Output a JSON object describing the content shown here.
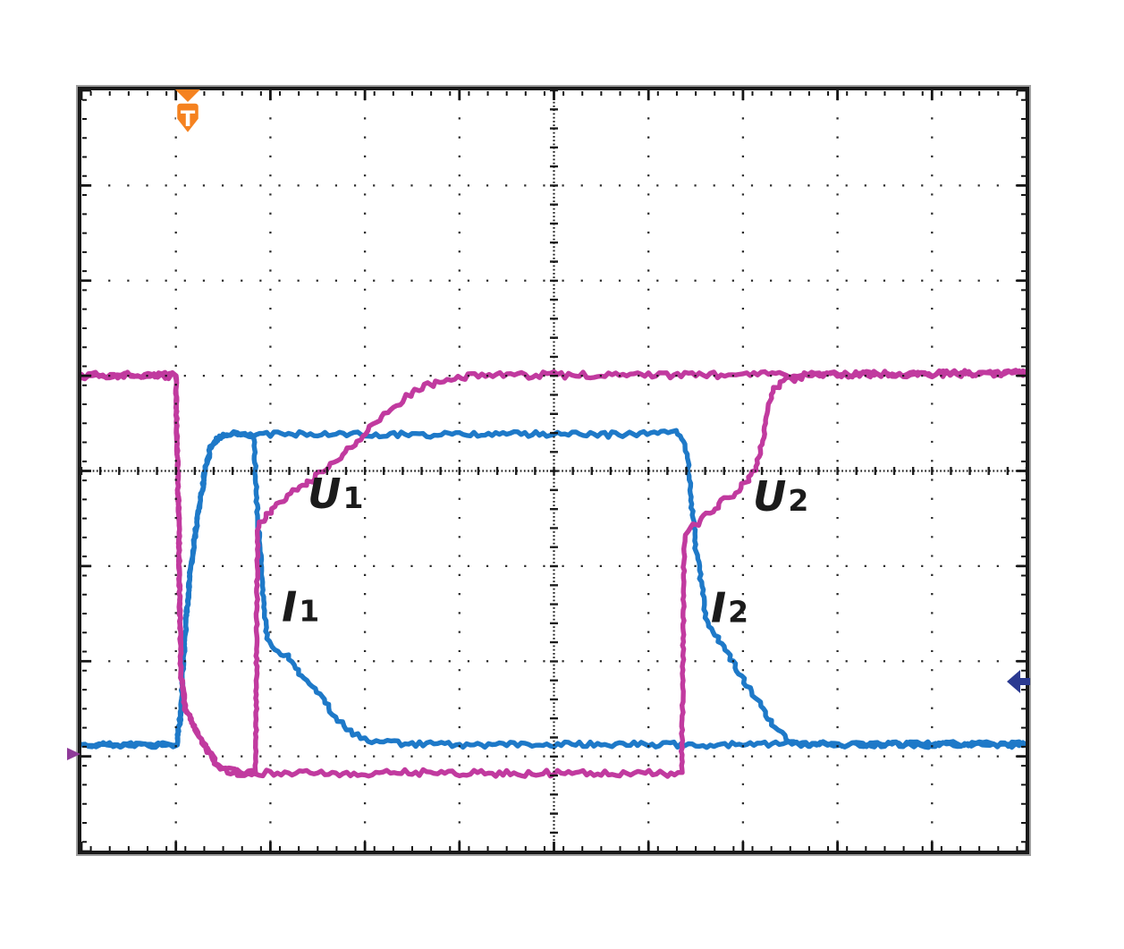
{
  "scope": {
    "trigger_marker": {
      "symbol": "T",
      "x_div": 1.12,
      "color": "#f58220"
    },
    "left_marker": {
      "y_div": 6.97,
      "color": "#8f3a99"
    },
    "right_arrow": {
      "y_div": 6.21,
      "color": "#2b3a91"
    }
  },
  "chart_data": {
    "type": "line",
    "graticule": {
      "x_divisions": 10,
      "y_divisions": 8,
      "style": "dotted grid with dense center crosshair and border ticks"
    },
    "axes": {
      "x_range_div": [
        0,
        10
      ],
      "y_range_div": [
        0,
        8
      ],
      "y_measured_from": "top",
      "tick_labels": "none shown"
    },
    "legend": "none shown",
    "levels_div": {
      "U_high": 3.0,
      "U_low": 7.17,
      "I_zero": 6.88,
      "I_high": 3.62
    },
    "annotations": [
      {
        "text": "U",
        "sub": "1",
        "x_div": 2.69,
        "y_div": 4.24
      },
      {
        "text": "I",
        "sub": "1",
        "x_div": 2.32,
        "y_div": 5.43
      },
      {
        "text": "U",
        "sub": "2",
        "x_div": 7.4,
        "y_div": 4.27
      },
      {
        "text": "I",
        "sub": "2",
        "x_div": 6.86,
        "y_div": 5.44
      }
    ],
    "series": [
      {
        "name": "I1",
        "description": "blue current trace, turn-off at event 1",
        "color": "#1e79c8",
        "noise": 3.1,
        "points": [
          [
            0,
            6.88
          ],
          [
            0.5,
            6.88
          ],
          [
            1.01,
            6.88
          ],
          [
            1.03,
            6.7
          ],
          [
            1.05,
            6.57
          ],
          [
            1.07,
            6.19
          ],
          [
            1.09,
            5.82
          ],
          [
            1.12,
            5.44
          ],
          [
            1.15,
            5.07
          ],
          [
            1.2,
            4.69
          ],
          [
            1.26,
            4.31
          ],
          [
            1.31,
            3.99
          ],
          [
            1.37,
            3.75
          ],
          [
            1.43,
            3.66
          ],
          [
            1.5,
            3.62
          ],
          [
            1.65,
            3.61
          ],
          [
            1.82,
            3.63
          ],
          [
            1.835,
            3.84
          ],
          [
            1.845,
            4.13
          ],
          [
            1.854,
            4.36
          ],
          [
            1.864,
            4.43
          ],
          [
            1.88,
            4.69
          ],
          [
            1.9,
            4.97
          ],
          [
            1.92,
            5.25
          ],
          [
            1.94,
            5.54
          ],
          [
            1.96,
            5.72
          ],
          [
            1.98,
            5.8
          ],
          [
            2.02,
            5.84
          ],
          [
            2.09,
            5.89
          ],
          [
            2.15,
            5.96
          ],
          [
            2.18,
            5.94
          ],
          [
            2.26,
            6.08
          ],
          [
            2.36,
            6.17
          ],
          [
            2.45,
            6.26
          ],
          [
            2.54,
            6.38
          ],
          [
            2.64,
            6.52
          ],
          [
            2.72,
            6.62
          ],
          [
            2.81,
            6.71
          ],
          [
            2.92,
            6.78
          ],
          [
            3.04,
            6.82
          ],
          [
            3.16,
            6.85
          ],
          [
            3.5,
            6.87
          ],
          [
            4.5,
            6.88
          ],
          [
            5.5,
            6.87
          ],
          [
            6.5,
            6.88
          ],
          [
            7.5,
            6.87
          ],
          [
            8.5,
            6.88
          ],
          [
            9.3,
            6.87
          ],
          [
            10,
            6.88
          ]
        ]
      },
      {
        "name": "I2",
        "description": "blue current trace, turn-off at event 2",
        "color": "#1e79c8",
        "noise": 3.1,
        "points": [
          [
            0,
            6.88
          ],
          [
            1.01,
            6.88
          ],
          [
            1.03,
            6.7
          ],
          [
            1.05,
            6.57
          ],
          [
            1.07,
            6.19
          ],
          [
            1.09,
            5.82
          ],
          [
            1.12,
            5.44
          ],
          [
            1.15,
            5.07
          ],
          [
            1.2,
            4.69
          ],
          [
            1.26,
            4.31
          ],
          [
            1.31,
            3.99
          ],
          [
            1.37,
            3.75
          ],
          [
            1.43,
            3.66
          ],
          [
            1.5,
            3.62
          ],
          [
            2.5,
            3.61
          ],
          [
            3.5,
            3.62
          ],
          [
            4.5,
            3.61
          ],
          [
            5.5,
            3.62
          ],
          [
            6.1,
            3.61
          ],
          [
            6.28,
            3.59
          ],
          [
            6.36,
            3.66
          ],
          [
            6.39,
            3.75
          ],
          [
            6.42,
            3.94
          ],
          [
            6.44,
            4.13
          ],
          [
            6.45,
            4.31
          ],
          [
            6.47,
            4.5
          ],
          [
            6.49,
            4.66
          ],
          [
            6.5,
            4.81
          ],
          [
            6.54,
            5.0
          ],
          [
            6.55,
            5.13
          ],
          [
            6.57,
            5.25
          ],
          [
            6.59,
            5.41
          ],
          [
            6.61,
            5.54
          ],
          [
            6.64,
            5.63
          ],
          [
            6.71,
            5.72
          ],
          [
            6.77,
            5.82
          ],
          [
            6.83,
            5.91
          ],
          [
            6.87,
            5.98
          ],
          [
            6.91,
            6.03
          ],
          [
            6.96,
            6.13
          ],
          [
            7.02,
            6.22
          ],
          [
            7.09,
            6.32
          ],
          [
            7.15,
            6.41
          ],
          [
            7.21,
            6.5
          ],
          [
            7.27,
            6.6
          ],
          [
            7.34,
            6.69
          ],
          [
            7.4,
            6.76
          ],
          [
            7.46,
            6.82
          ],
          [
            7.53,
            6.85
          ],
          [
            7.59,
            6.88
          ],
          [
            8.2,
            6.87
          ],
          [
            9.0,
            6.88
          ],
          [
            10,
            6.87
          ]
        ]
      },
      {
        "name": "U2",
        "description": "magenta voltage trace, turn-off at event 2",
        "color": "#c13a9f",
        "noise": 3.6,
        "points": [
          [
            0,
            3.0
          ],
          [
            0.5,
            2.99
          ],
          [
            1.0,
            3.0
          ],
          [
            1.03,
            4.5
          ],
          [
            1.05,
            6.1
          ],
          [
            1.1,
            6.5
          ],
          [
            1.19,
            6.68
          ],
          [
            1.27,
            6.82
          ],
          [
            1.34,
            6.95
          ],
          [
            1.42,
            7.06
          ],
          [
            1.52,
            7.14
          ],
          [
            1.65,
            7.17
          ],
          [
            2.5,
            7.18
          ],
          [
            3.5,
            7.17
          ],
          [
            4.5,
            7.18
          ],
          [
            5.5,
            7.17
          ],
          [
            6.2,
            7.18
          ],
          [
            6.35,
            7.17
          ],
          [
            6.36,
            6.5
          ],
          [
            6.37,
            5.5
          ],
          [
            6.375,
            4.9
          ],
          [
            6.38,
            4.66
          ],
          [
            6.45,
            4.6
          ],
          [
            6.55,
            4.53
          ],
          [
            6.65,
            4.44
          ],
          [
            6.75,
            4.35
          ],
          [
            6.85,
            4.28
          ],
          [
            6.95,
            4.2
          ],
          [
            7.05,
            4.1
          ],
          [
            7.13,
            3.99
          ],
          [
            7.17,
            3.85
          ],
          [
            7.2,
            3.72
          ],
          [
            7.24,
            3.5
          ],
          [
            7.27,
            3.33
          ],
          [
            7.3,
            3.2
          ],
          [
            7.34,
            3.14
          ],
          [
            7.4,
            3.08
          ],
          [
            7.5,
            3.04
          ],
          [
            7.65,
            3.0
          ],
          [
            7.85,
            2.98
          ],
          [
            8.5,
            2.98
          ],
          [
            9.2,
            2.98
          ],
          [
            10,
            2.96
          ]
        ]
      },
      {
        "name": "U1",
        "description": "magenta voltage trace, turn-off at event 1",
        "color": "#c13a9f",
        "noise": 3.6,
        "points": [
          [
            0,
            3.0
          ],
          [
            0.45,
            2.99
          ],
          [
            1.0,
            3.0
          ],
          [
            1.03,
            4.5
          ],
          [
            1.05,
            6.1
          ],
          [
            1.1,
            6.5
          ],
          [
            1.19,
            6.68
          ],
          [
            1.27,
            6.82
          ],
          [
            1.34,
            6.95
          ],
          [
            1.42,
            7.06
          ],
          [
            1.52,
            7.14
          ],
          [
            1.65,
            7.17
          ],
          [
            1.84,
            7.17
          ],
          [
            1.85,
            6.5
          ],
          [
            1.857,
            5.5
          ],
          [
            1.862,
            4.9
          ],
          [
            1.87,
            4.63
          ],
          [
            1.9,
            4.55
          ],
          [
            1.97,
            4.46
          ],
          [
            2.05,
            4.38
          ],
          [
            2.15,
            4.28
          ],
          [
            2.25,
            4.22
          ],
          [
            2.32,
            4.18
          ],
          [
            2.4,
            4.12
          ],
          [
            2.55,
            4.0
          ],
          [
            2.7,
            3.88
          ],
          [
            2.85,
            3.74
          ],
          [
            3.0,
            3.6
          ],
          [
            3.15,
            3.46
          ],
          [
            3.3,
            3.33
          ],
          [
            3.45,
            3.22
          ],
          [
            3.6,
            3.13
          ],
          [
            3.75,
            3.07
          ],
          [
            3.95,
            3.02
          ],
          [
            4.2,
            3.0
          ],
          [
            5.0,
            2.99
          ],
          [
            6.0,
            3.0
          ],
          [
            7.0,
            2.99
          ],
          [
            8.0,
            2.99
          ],
          [
            9.0,
            2.98
          ],
          [
            10,
            2.97
          ]
        ]
      }
    ]
  }
}
